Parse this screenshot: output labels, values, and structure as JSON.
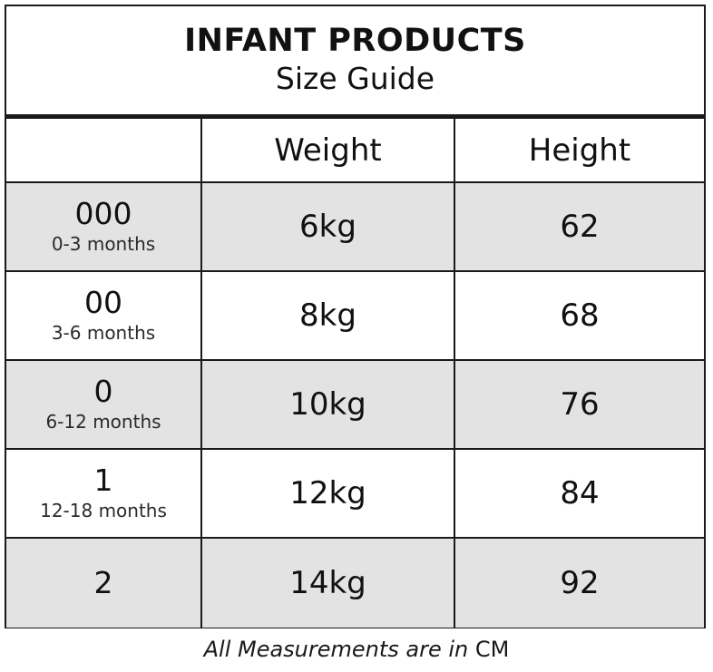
{
  "title": "INFANT PRODUCTS",
  "subtitle": "Size Guide",
  "columns": [
    "",
    "Weight",
    "Height"
  ],
  "rows": [
    {
      "size": "000",
      "age": "0-3 months",
      "weight": "6kg",
      "height": "62"
    },
    {
      "size": "00",
      "age": "3-6 months",
      "weight": "8kg",
      "height": "68"
    },
    {
      "size": "0",
      "age": "6-12 months",
      "weight": "10kg",
      "height": "76"
    },
    {
      "size": "1",
      "age": "12-18 months",
      "weight": "12kg",
      "height": "84"
    },
    {
      "size": "2",
      "age": "",
      "weight": "14kg",
      "height": "92"
    }
  ],
  "footnote": {
    "text": "All Measurements are in ",
    "unit": "CM"
  },
  "colors": {
    "shaded_row": "#e3e3e3",
    "border": "#1a1a1a"
  }
}
